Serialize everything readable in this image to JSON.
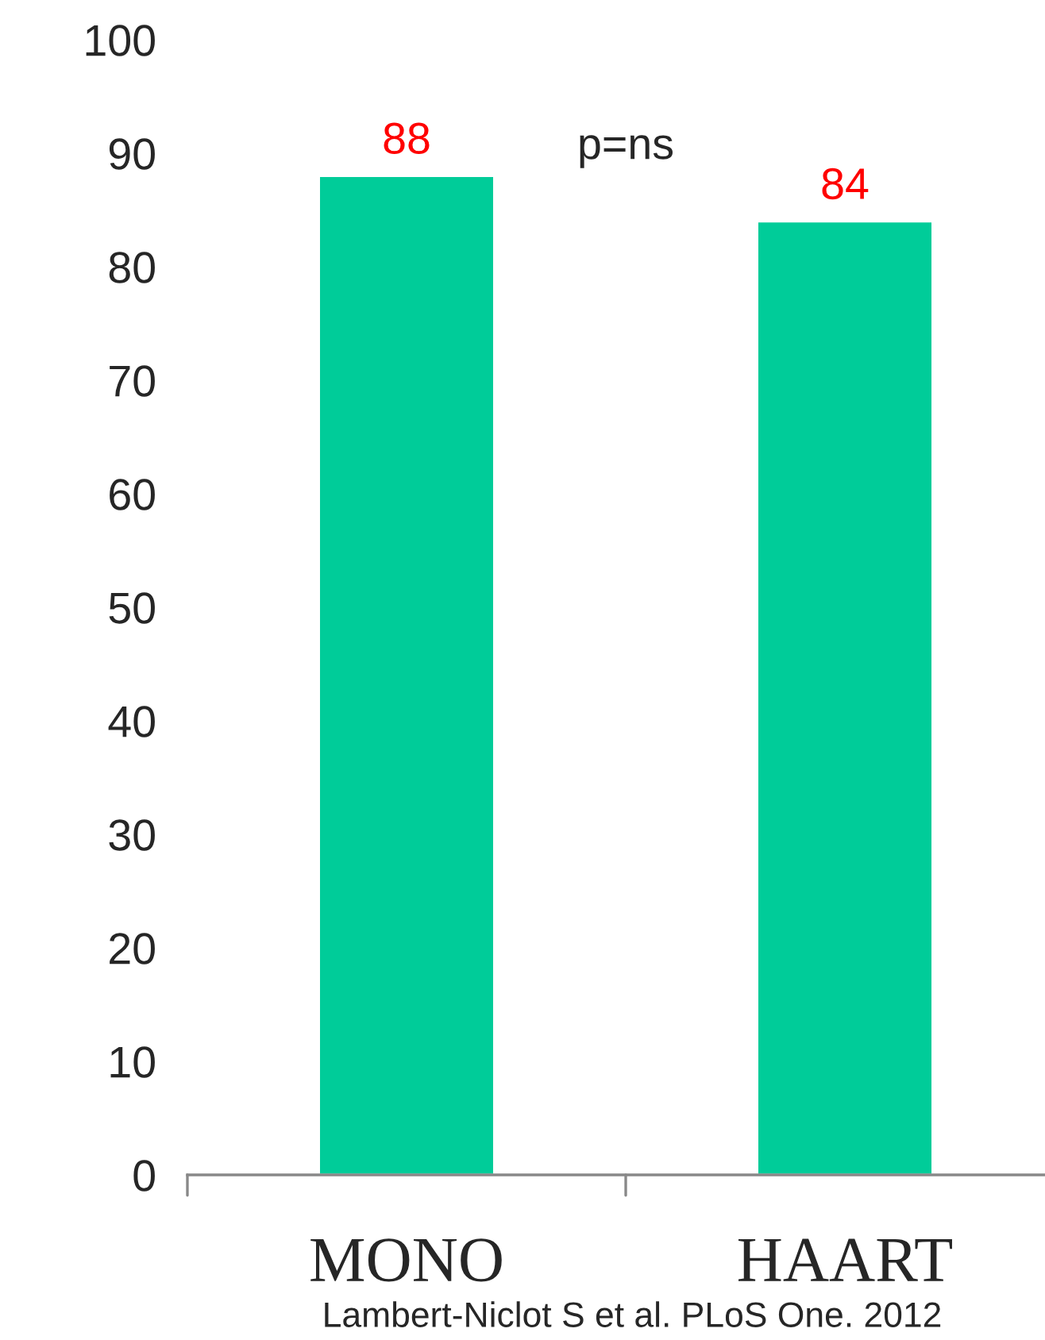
{
  "chart_data": {
    "type": "bar",
    "categories": [
      "MONO",
      "HAART"
    ],
    "values": [
      88,
      84
    ],
    "color": "#00cc99",
    "data_labels": true,
    "ylim": [
      0,
      100
    ],
    "yticks": [
      0,
      10,
      20,
      30,
      40,
      50,
      60,
      70,
      80,
      90,
      100
    ],
    "grid": false,
    "legend": false,
    "annotations": [
      "p=ns",
      "Lambert-Niclot S et al. PLoS One. 2012"
    ]
  }
}
